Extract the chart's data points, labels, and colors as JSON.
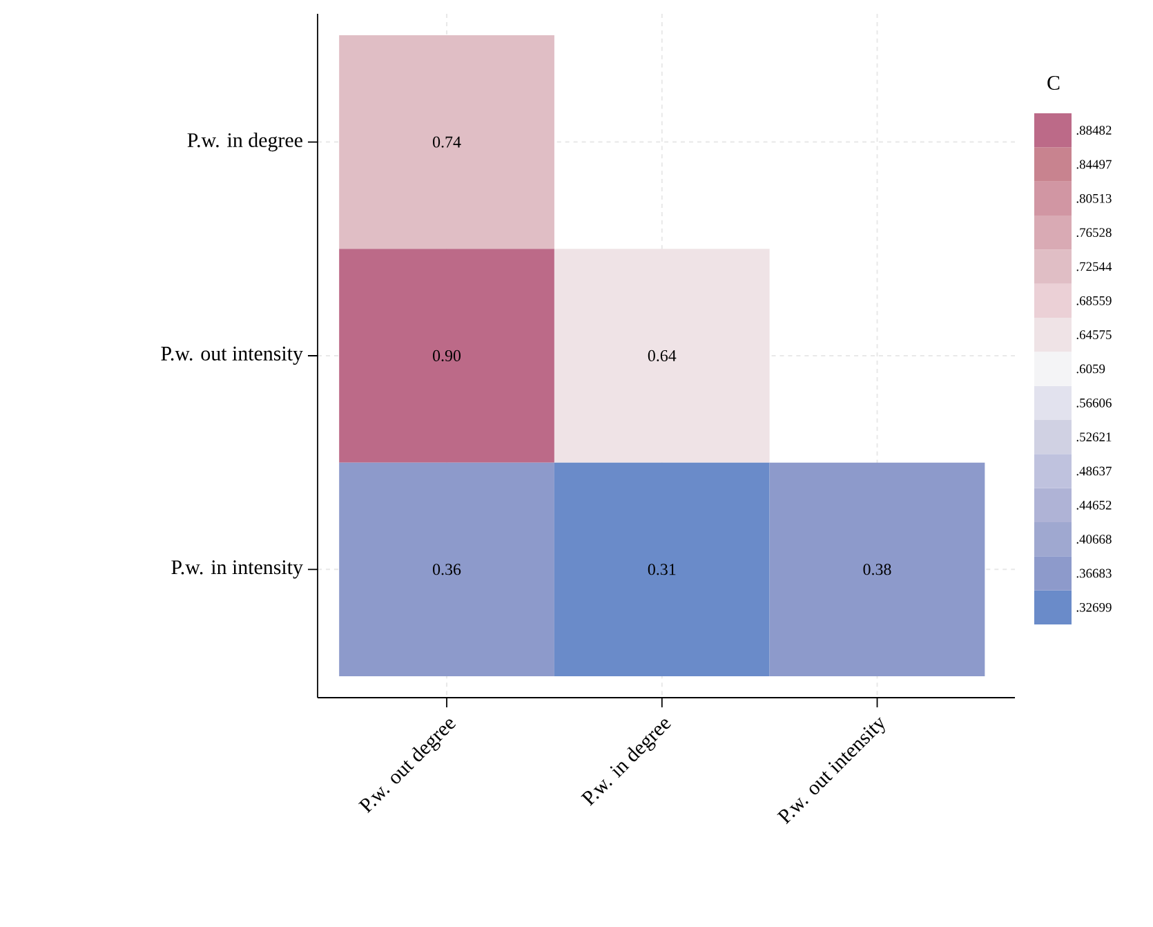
{
  "chart_data": {
    "type": "heatmap",
    "categories": [
      "P.w. out degree",
      "P.w. in degree",
      "P.w. out intensity"
    ],
    "y_categories": [
      "P.w. in degree",
      "P.w. out intensity",
      "P.w. in intensity"
    ],
    "cells": [
      [
        0.74,
        null,
        null
      ],
      [
        0.9,
        0.64,
        null
      ],
      [
        0.36,
        0.31,
        0.38
      ]
    ],
    "cell_labels": [
      [
        "0.74",
        null,
        null
      ],
      [
        "0.90",
        "0.64",
        null
      ],
      [
        "0.36",
        "0.31",
        "0.38"
      ]
    ],
    "clabel": "C",
    "clim": [
      0.30707,
      0.90474
    ],
    "cticks": [
      {
        "value": 0.32699,
        "label": ".32699"
      },
      {
        "value": 0.36683,
        "label": ".36683"
      },
      {
        "value": 0.40668,
        "label": ".40668"
      },
      {
        "value": 0.44652,
        "label": ".44652"
      },
      {
        "value": 0.48637,
        "label": ".48637"
      },
      {
        "value": 0.52621,
        "label": ".52621"
      },
      {
        "value": 0.56606,
        "label": ".56606"
      },
      {
        "value": 0.6059,
        "label": ".6059"
      },
      {
        "value": 0.64575,
        "label": ".64575"
      },
      {
        "value": 0.68559,
        "label": ".68559"
      },
      {
        "value": 0.72544,
        "label": ".72544"
      },
      {
        "value": 0.76528,
        "label": ".76528"
      },
      {
        "value": 0.80513,
        "label": ".80513"
      },
      {
        "value": 0.84497,
        "label": ".84497"
      },
      {
        "value": 0.88482,
        "label": ".88482"
      }
    ],
    "colors": [
      "#6a8bc9",
      "#8d9acb",
      "#9fa8d0",
      "#afb3d6",
      "#bfc2de",
      "#d0d1e3",
      "#e2e2ee",
      "#f4f4f6",
      "#efe3e6",
      "#ebd0d6",
      "#e0bec5",
      "#d9aab4",
      "#d196a3",
      "#c8838f",
      "#bc6a88"
    ],
    "grid": true
  }
}
